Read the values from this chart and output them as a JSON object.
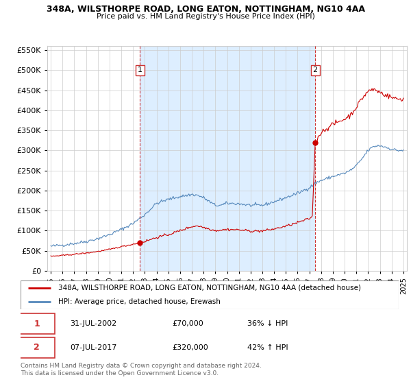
{
  "title1": "348A, WILSTHORPE ROAD, LONG EATON, NOTTINGHAM, NG10 4AA",
  "title2": "Price paid vs. HM Land Registry's House Price Index (HPI)",
  "legend_line1": "348A, WILSTHORPE ROAD, LONG EATON, NOTTINGHAM, NG10 4AA (detached house)",
  "legend_line2": "HPI: Average price, detached house, Erewash",
  "footer": "Contains HM Land Registry data © Crown copyright and database right 2024.\nThis data is licensed under the Open Government Licence v3.0.",
  "sale1_date": "31-JUL-2002",
  "sale1_price": 70000,
  "sale1_hpi": "36% ↓ HPI",
  "sale2_date": "07-JUL-2017",
  "sale2_price": 320000,
  "sale2_hpi": "42% ↑ HPI",
  "red_color": "#cc0000",
  "blue_color": "#5588bb",
  "vline_color": "#cc3333",
  "shade_color": "#ddeeff",
  "ylim_max": 560000,
  "ylim_min": 0,
  "sale1_x": 2002.583,
  "sale2_x": 2017.5
}
